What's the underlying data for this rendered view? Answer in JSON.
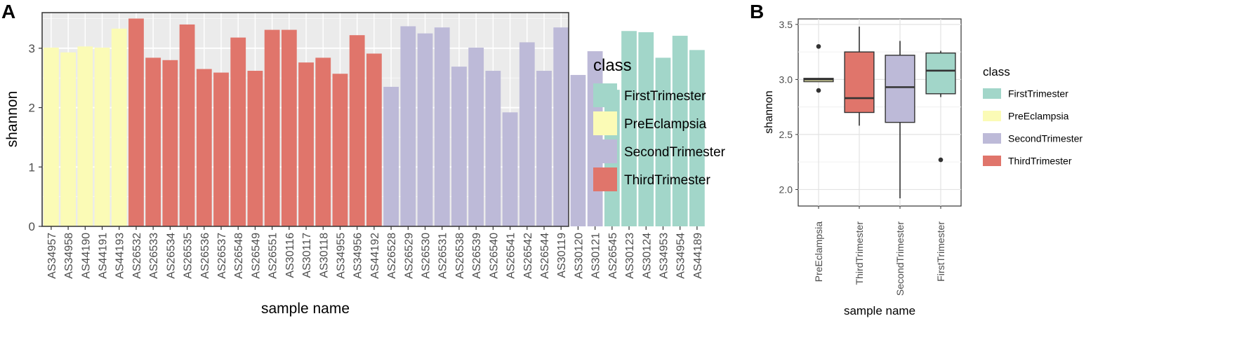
{
  "panel_a": {
    "letter": "A"
  },
  "panel_b": {
    "letter": "B"
  },
  "colors": {
    "FirstTrimester": "#a2d6c9",
    "PreEclampsia": "#fbfbb6",
    "SecondTrimester": "#bdbad8",
    "ThirdTrimester": "#e0756b",
    "panel_bg": "#ebebeb",
    "grid": "#ffffff",
    "axis_text": "#4d4d4d"
  },
  "chart_data": [
    {
      "type": "bar",
      "panel": "A",
      "xlabel": "sample name",
      "ylabel": "shannon",
      "ylim": [
        0,
        3.6
      ],
      "yticks": [
        0,
        1,
        2,
        3
      ],
      "grid": true,
      "legend_title": "class",
      "legend": [
        "FirstTrimester",
        "PreEclampsia",
        "SecondTrimester",
        "ThirdTrimester"
      ],
      "legend_position": "right",
      "categories": [
        "AS34957",
        "AS34958",
        "AS44190",
        "AS44191",
        "AS44193",
        "AS26532",
        "AS26533",
        "AS26534",
        "AS26535",
        "AS26536",
        "AS26537",
        "AS26548",
        "AS26549",
        "AS26551",
        "AS30116",
        "AS30117",
        "AS30118",
        "AS34955",
        "AS34956",
        "AS44192",
        "AS26528",
        "AS26529",
        "AS26530",
        "AS26531",
        "AS26538",
        "AS26539",
        "AS26540",
        "AS26541",
        "AS26542",
        "AS26544",
        "AS30119",
        "AS30120",
        "AS30121",
        "AS26545",
        "AS30123",
        "AS30124",
        "AS34953",
        "AS34954",
        "AS44189"
      ],
      "values": [
        3.01,
        2.93,
        3.03,
        3.01,
        3.33,
        3.5,
        2.84,
        2.8,
        3.4,
        2.65,
        2.59,
        3.18,
        2.62,
        3.31,
        3.31,
        2.76,
        2.84,
        2.57,
        3.22,
        2.91,
        2.35,
        3.37,
        3.25,
        3.35,
        2.69,
        3.01,
        2.62,
        1.92,
        3.1,
        2.62,
        3.35,
        2.55,
        2.95,
        2.3,
        3.29,
        3.27,
        2.84,
        3.21,
        2.97
      ],
      "classes": [
        "PreEclampsia",
        "PreEclampsia",
        "PreEclampsia",
        "PreEclampsia",
        "PreEclampsia",
        "ThirdTrimester",
        "ThirdTrimester",
        "ThirdTrimester",
        "ThirdTrimester",
        "ThirdTrimester",
        "ThirdTrimester",
        "ThirdTrimester",
        "ThirdTrimester",
        "ThirdTrimester",
        "ThirdTrimester",
        "ThirdTrimester",
        "ThirdTrimester",
        "ThirdTrimester",
        "ThirdTrimester",
        "ThirdTrimester",
        "SecondTrimester",
        "SecondTrimester",
        "SecondTrimester",
        "SecondTrimester",
        "SecondTrimester",
        "SecondTrimester",
        "SecondTrimester",
        "SecondTrimester",
        "SecondTrimester",
        "SecondTrimester",
        "SecondTrimester",
        "SecondTrimester",
        "SecondTrimester",
        "FirstTrimester",
        "FirstTrimester",
        "FirstTrimester",
        "FirstTrimester",
        "FirstTrimester",
        "FirstTrimester"
      ]
    },
    {
      "type": "box",
      "panel": "B",
      "xlabel": "sample name",
      "ylabel": "shannon",
      "ylim": [
        1.85,
        3.55
      ],
      "yticks": [
        2.0,
        2.5,
        3.0,
        3.5
      ],
      "grid": true,
      "legend_title": "class",
      "legend": [
        "FirstTrimester",
        "PreEclampsia",
        "SecondTrimester",
        "ThirdTrimester"
      ],
      "legend_position": "right",
      "categories": [
        "PreEclampsia",
        "ThirdTrimester",
        "SecondTrimester",
        "FirstTrimester"
      ],
      "boxes": [
        {
          "name": "PreEclampsia",
          "q1": 2.98,
          "median": 3.0,
          "q3": 3.01,
          "whisker_low": 2.98,
          "whisker_high": 3.01,
          "outliers": [
            3.3,
            2.9
          ]
        },
        {
          "name": "ThirdTrimester",
          "q1": 2.7,
          "median": 2.83,
          "q3": 3.25,
          "whisker_low": 2.58,
          "whisker_high": 3.48,
          "outliers": []
        },
        {
          "name": "SecondTrimester",
          "q1": 2.61,
          "median": 2.93,
          "q3": 3.22,
          "whisker_low": 1.92,
          "whisker_high": 3.35,
          "outliers": []
        },
        {
          "name": "FirstTrimester",
          "q1": 2.87,
          "median": 3.08,
          "q3": 3.24,
          "whisker_low": 2.84,
          "whisker_high": 3.26,
          "outliers": [
            2.27
          ]
        }
      ]
    }
  ]
}
